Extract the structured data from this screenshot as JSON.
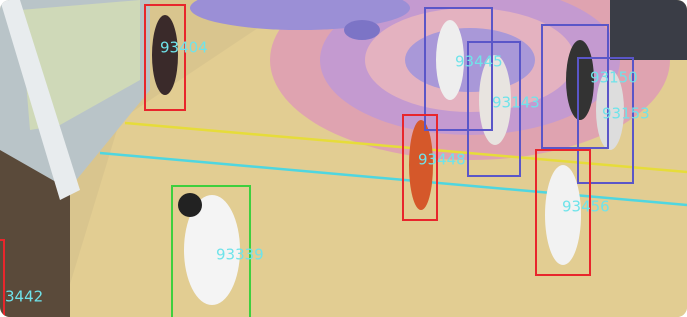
{
  "detections": [
    {
      "label": "93404",
      "color": "#e8262c"
    },
    {
      "label": "93445",
      "color": "#5a56c8"
    },
    {
      "label": "93143",
      "color": "#5a56c8"
    },
    {
      "label": "93150",
      "color": "#5a56c8"
    },
    {
      "label": "93153",
      "color": "#5a56c8"
    },
    {
      "label": "93448",
      "color": "#e8262c"
    },
    {
      "label": "93456",
      "color": "#e8262c"
    },
    {
      "label": "93339",
      "color": "#3ecf3e"
    },
    {
      "label": "3442",
      "color": "#e8262c"
    }
  ]
}
